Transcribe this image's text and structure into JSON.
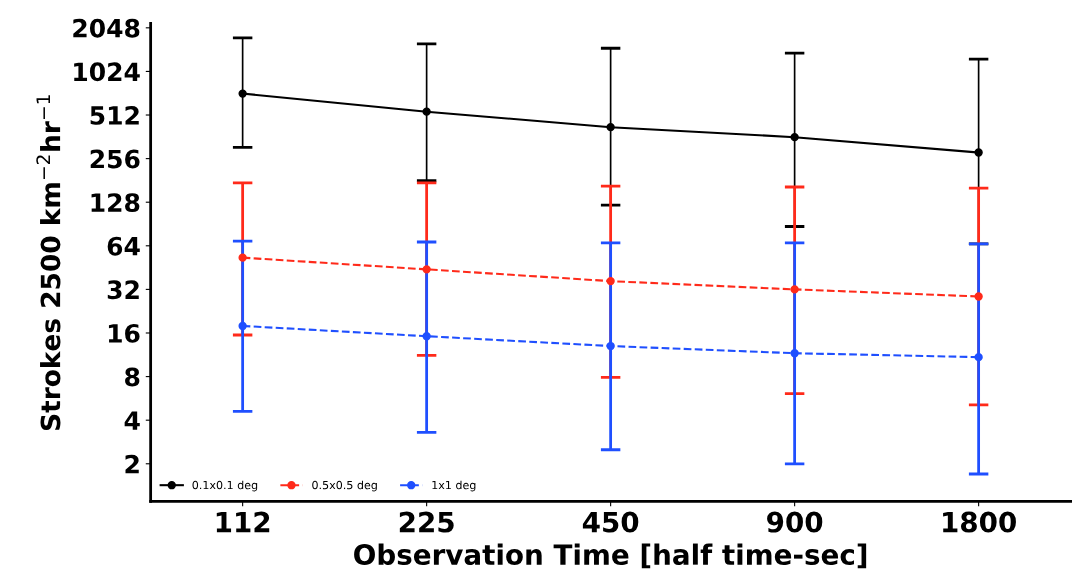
{
  "chart_data": {
    "type": "line",
    "xlabel": "Observation Time [half time-sec]",
    "ylabel": "Strokes 2500 km$^{−2}$hr$^{−1}$",
    "categories": [
      "112",
      "225",
      "450",
      "900",
      "1800"
    ],
    "log": "y",
    "ylim": [
      1.1,
      2200
    ],
    "yticks": [
      2,
      4,
      8,
      16,
      32,
      64,
      128,
      256,
      512,
      1024,
      2048
    ],
    "grid": false,
    "legend": "bottom left",
    "marker": "circle",
    "series": [
      {
        "name": "0.1x0.1 deg",
        "color": "#000000",
        "line_style": "solid",
        "values": [
          720,
          540,
          422,
          360,
          282
        ],
        "errors": [
          [
            306,
            1745
          ],
          [
            180,
            1585
          ],
          [
            122,
            1480
          ],
          [
            87,
            1370
          ],
          [
            66,
            1245
          ]
        ]
      },
      {
        "name": "0.5x0.5 deg",
        "color": "#ff2a1a",
        "line_style": "dashed",
        "values": [
          53,
          44,
          36.5,
          32,
          28.6
        ],
        "errors": [
          [
            15.5,
            174
          ],
          [
            11.2,
            174
          ],
          [
            7.9,
            165
          ],
          [
            6.1,
            163
          ],
          [
            5.1,
            160
          ]
        ]
      },
      {
        "name": "1x1 deg",
        "color": "#1f4fff",
        "line_style": "dashed",
        "values": [
          17.9,
          15.2,
          13,
          11.6,
          10.9
        ],
        "errors": [
          [
            4.6,
            69
          ],
          [
            3.3,
            68
          ],
          [
            2.5,
            67
          ],
          [
            2,
            67
          ],
          [
            1.7,
            66
          ]
        ]
      }
    ]
  }
}
